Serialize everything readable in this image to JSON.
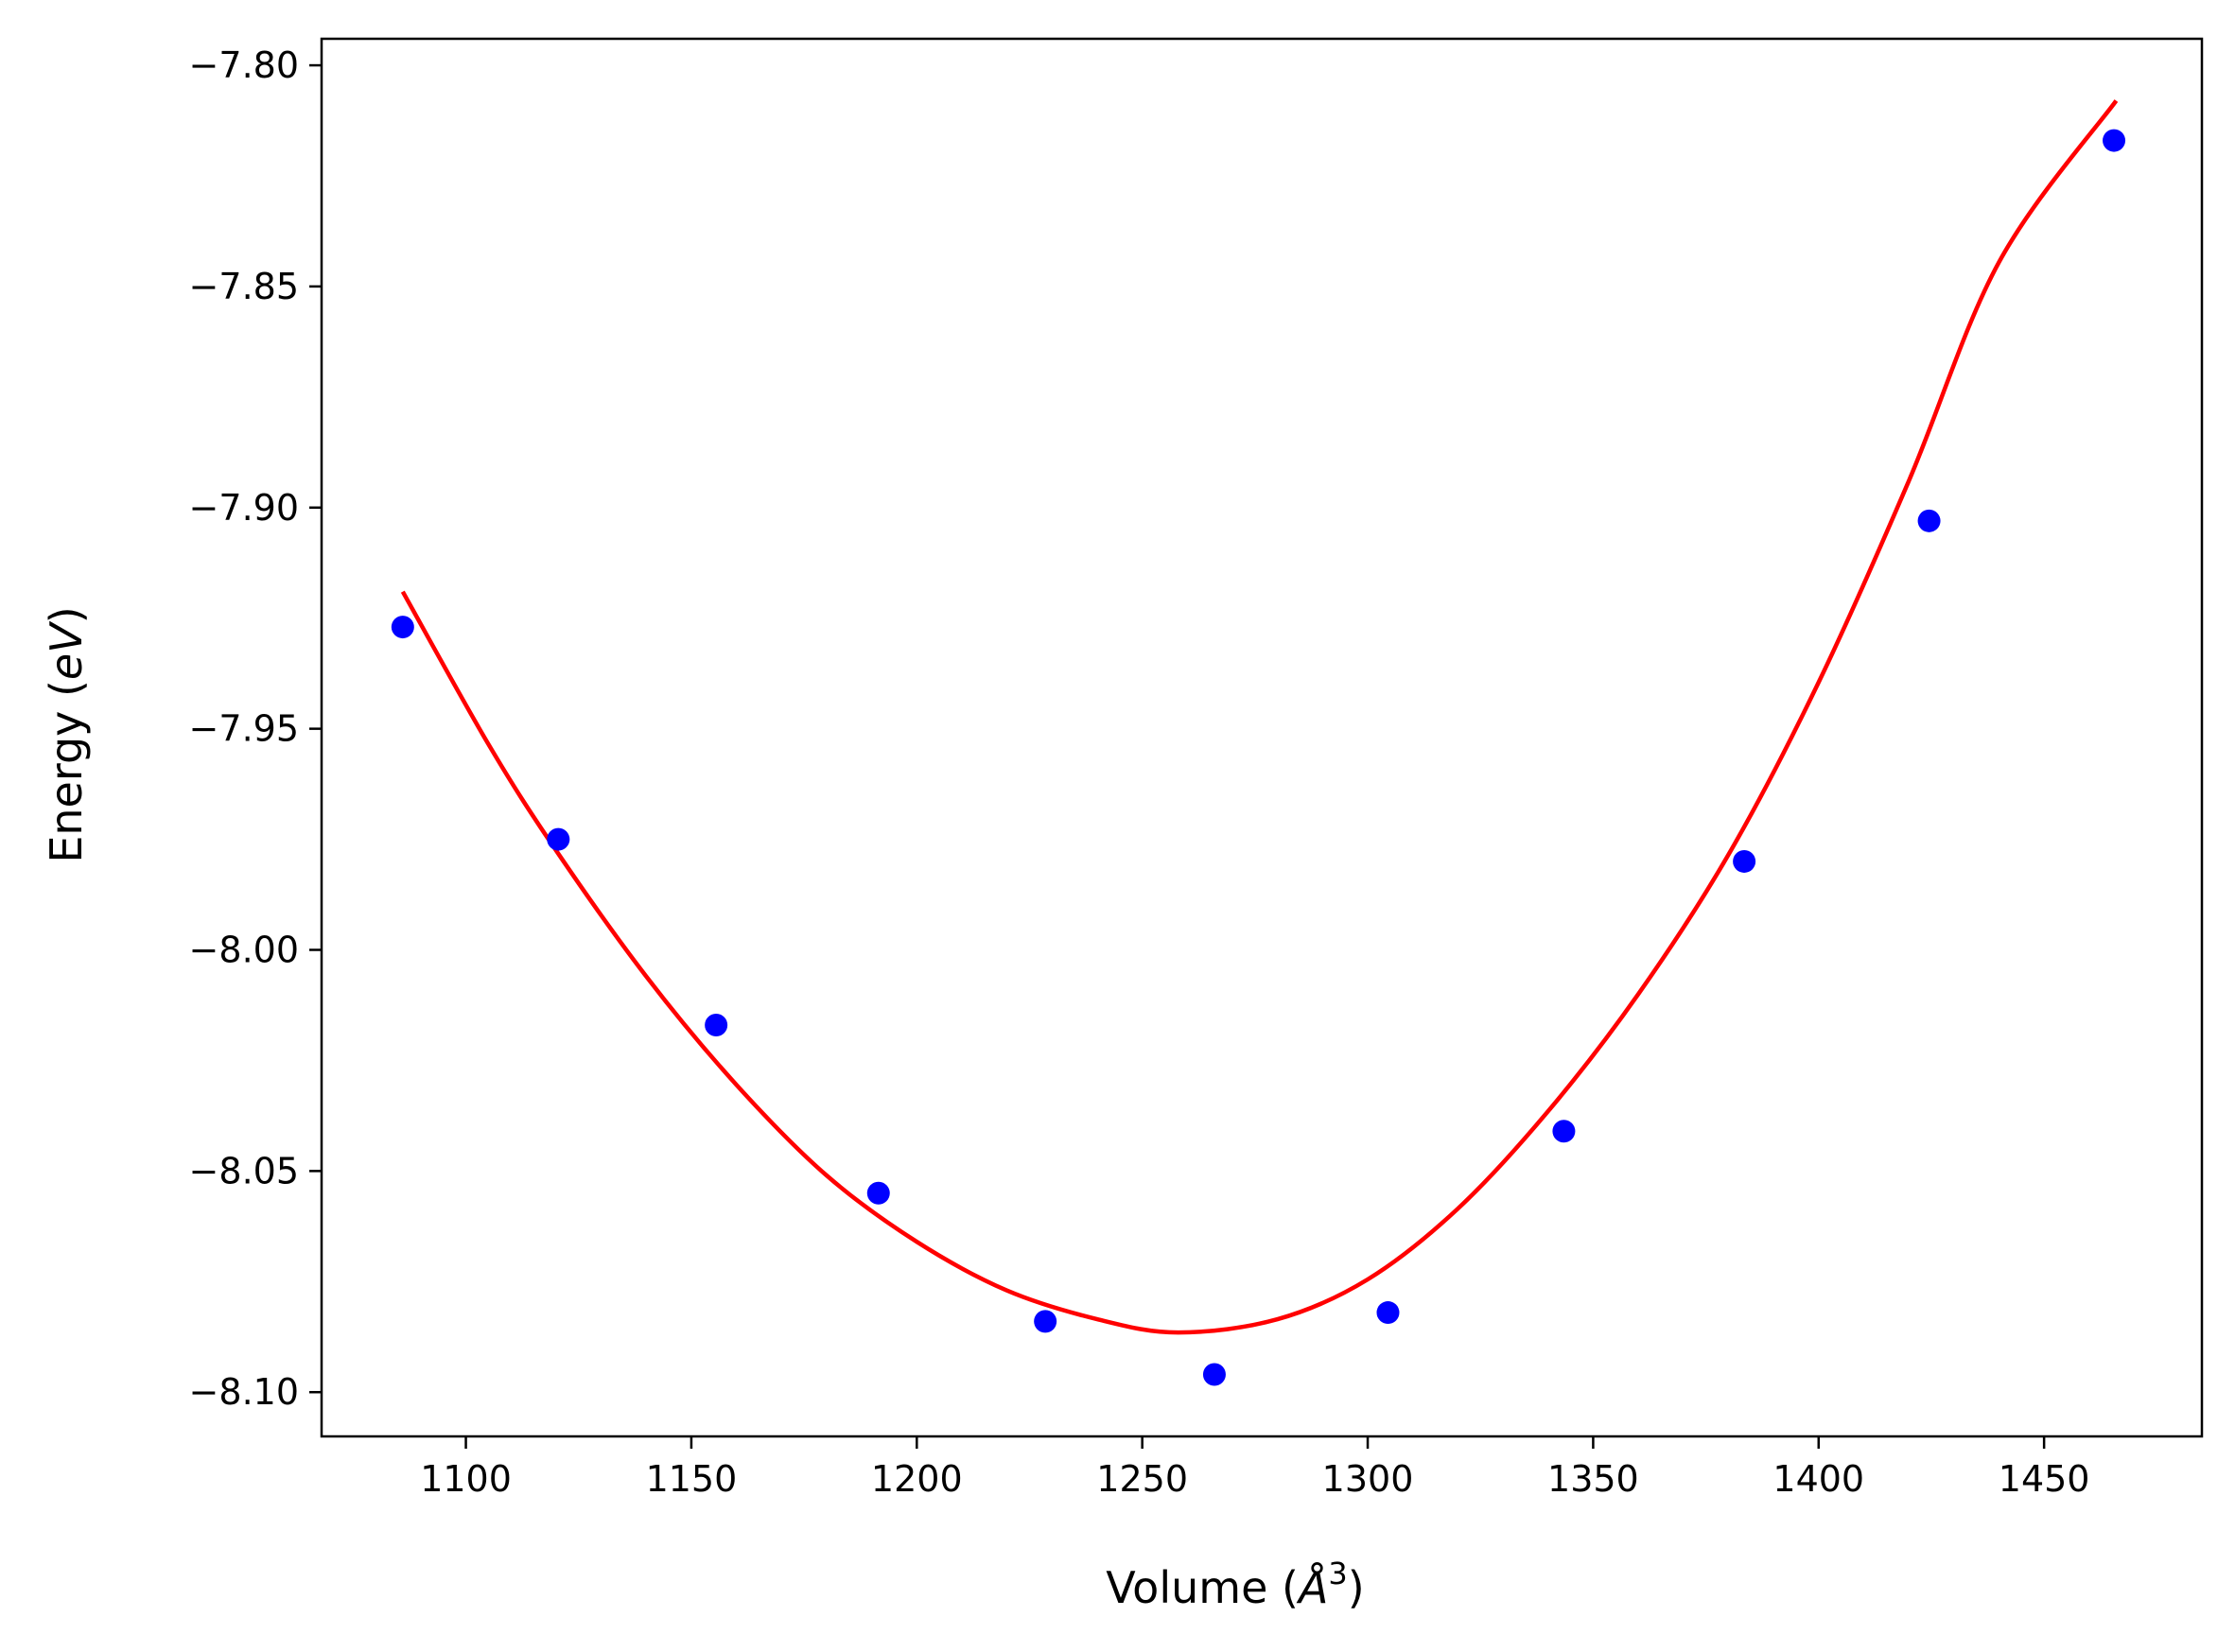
{
  "chart_data": {
    "type": "scatter",
    "xlabel": {
      "prefix": "Volume (",
      "var": "Å",
      "sup": "3",
      "suffix": ")"
    },
    "ylabel": {
      "prefix": "Energy (",
      "var": "eV",
      "suffix": ")"
    },
    "xlim": [
      1068,
      1485
    ],
    "ylim": [
      -8.11,
      -7.794
    ],
    "x_ticks": [
      1100,
      1150,
      1200,
      1250,
      1300,
      1350,
      1400,
      1450
    ],
    "x_tick_labels": [
      "1100",
      "1150",
      "1200",
      "1250",
      "1300",
      "1350",
      "1400",
      "1450"
    ],
    "y_ticks": [
      -7.8,
      -7.85,
      -7.9,
      -7.95,
      -8.0,
      -8.05,
      -8.1
    ],
    "y_tick_labels": [
      "−7.80",
      "−7.85",
      "−7.90",
      "−7.95",
      "−8.00",
      "−8.05",
      "−8.10"
    ],
    "grid": false,
    "colors": {
      "points": "#0000ff",
      "fit": "#ff0000"
    },
    "series": [
      {
        "kind": "scatter",
        "x": [
          1086,
          1120.5,
          1155.5,
          1191.5,
          1228.5,
          1266,
          1304.5,
          1343.5,
          1383.5,
          1424.5,
          1465.5
        ],
        "y": [
          -7.927,
          -7.975,
          -8.017,
          -8.055,
          -8.084,
          -8.096,
          -8.082,
          -8.041,
          -7.98,
          -7.903,
          -7.817
        ]
      },
      {
        "kind": "line",
        "x": [
          1086,
          1105,
          1120,
          1140,
          1160,
          1180,
          1200,
          1220,
          1240,
          1258,
          1280,
          1300,
          1320,
          1340,
          1360,
          1380,
          1400,
          1420,
          1440,
          1466
        ],
        "y": [
          -7.919,
          -7.9535,
          -7.9775,
          -8.006,
          -8.0305,
          -8.051,
          -8.066,
          -8.077,
          -8.0835,
          -8.0865,
          -8.0835,
          -8.0745,
          -8.0585,
          -8.0365,
          -8.01,
          -7.9785,
          -7.9395,
          -7.894,
          -7.8445,
          -7.808
        ]
      }
    ]
  }
}
